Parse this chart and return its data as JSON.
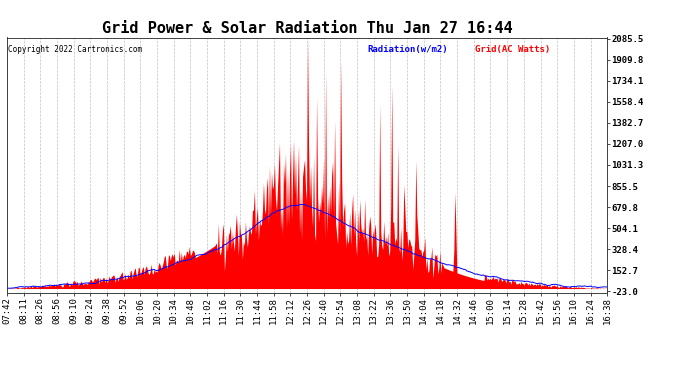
{
  "title": "Grid Power & Solar Radiation Thu Jan 27 16:44",
  "copyright": "Copyright 2022 Cartronics.com",
  "legend_radiation": "Radiation(w/m2)",
  "legend_grid": "Grid(AC Watts)",
  "ymin": -23.0,
  "ymax": 2085.5,
  "yticks": [
    2085.5,
    1909.8,
    1734.1,
    1558.4,
    1382.7,
    1207.0,
    1031.3,
    855.5,
    679.8,
    504.1,
    328.4,
    152.7,
    -23.0
  ],
  "xtick_labels": [
    "07:42",
    "08:11",
    "08:26",
    "08:56",
    "09:10",
    "09:24",
    "09:38",
    "09:52",
    "10:06",
    "10:20",
    "10:34",
    "10:48",
    "11:02",
    "11:16",
    "11:30",
    "11:44",
    "11:58",
    "12:12",
    "12:26",
    "12:40",
    "12:54",
    "13:08",
    "13:22",
    "13:36",
    "13:50",
    "14:04",
    "14:18",
    "14:32",
    "14:46",
    "15:00",
    "15:14",
    "15:28",
    "15:42",
    "15:56",
    "16:10",
    "16:24",
    "16:38"
  ],
  "background_color": "#ffffff",
  "grid_color": "#bbbbbb",
  "radiation_color": "#ff0000",
  "grid_line_color": "#0000ff",
  "title_fontsize": 11,
  "label_fontsize": 6.5,
  "figwidth": 6.9,
  "figheight": 3.75,
  "dpi": 100
}
